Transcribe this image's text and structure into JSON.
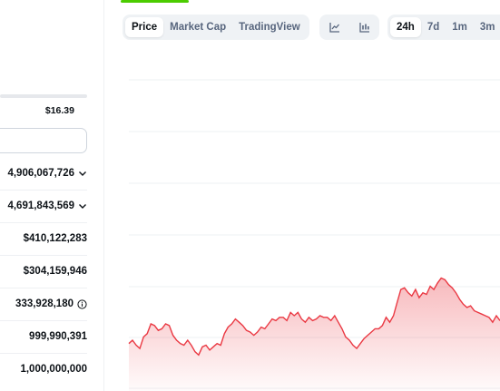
{
  "stats": {
    "range_high": "$16.39",
    "rows": [
      {
        "value": "4,906,067,726",
        "icon": "chevron-down-icon"
      },
      {
        "value": "4,691,843,569",
        "icon": "chevron-down-icon"
      },
      {
        "value": "$410,122,283",
        "icon": ""
      },
      {
        "value": "$304,159,946",
        "icon": ""
      },
      {
        "value": "333,928,180",
        "icon": "info-icon"
      },
      {
        "value": "999,990,391",
        "icon": ""
      },
      {
        "value": "1,000,000,000",
        "icon": ""
      }
    ]
  },
  "chart_tabs": [
    "Price",
    "Market Cap",
    "TradingView"
  ],
  "chart_tabs_active": "Price",
  "chart_type_icons": [
    "line-chart-icon",
    "candlestick-chart-icon"
  ],
  "time_tabs": [
    "24h",
    "7d",
    "1m",
    "3m"
  ],
  "time_tabs_active": "24h",
  "colors": {
    "line": "#ea3943",
    "fill": "#ea3943",
    "accent_green": "#4bcc00",
    "tab_bg": "#eff2f5"
  },
  "chart_data": {
    "type": "area",
    "title": "",
    "xlabel": "",
    "ylabel": "",
    "grid": true,
    "x": [
      0,
      1,
      2,
      3,
      4,
      5,
      6,
      7,
      8,
      9,
      10,
      11,
      12,
      13,
      14,
      15,
      16,
      17,
      18,
      19,
      20,
      21,
      22,
      23,
      24,
      25,
      26,
      27,
      28,
      29,
      30,
      31,
      32,
      33,
      34,
      35,
      36,
      37,
      38,
      39,
      40,
      41,
      42,
      43,
      44,
      45,
      46,
      47,
      48,
      49,
      50,
      51,
      52,
      53,
      54,
      55,
      56,
      57,
      58,
      59,
      60,
      61,
      62,
      63,
      64,
      65,
      66,
      67,
      68,
      69,
      70,
      71,
      72,
      73,
      74,
      75,
      76,
      77,
      78,
      79,
      80,
      81,
      82,
      83,
      84,
      85,
      86,
      87,
      88,
      89,
      90,
      91,
      92,
      93,
      94,
      95,
      96,
      97,
      98,
      99,
      100,
      101
    ],
    "values": [
      129,
      131,
      128,
      126,
      133,
      135,
      141,
      140,
      137,
      138,
      141,
      140,
      134,
      131,
      129,
      128,
      131,
      128,
      124,
      122,
      127,
      128,
      125,
      127,
      129,
      128,
      135,
      139,
      141,
      144,
      142,
      140,
      137,
      136,
      134,
      136,
      139,
      138,
      141,
      144,
      143,
      145,
      145,
      143,
      148,
      146,
      148,
      144,
      142,
      145,
      143,
      144,
      146,
      145,
      145,
      143,
      146,
      142,
      138,
      133,
      131,
      128,
      126,
      129,
      132,
      134,
      136,
      138,
      138,
      140,
      145,
      142,
      146,
      154,
      162,
      163,
      160,
      158,
      162,
      157,
      160,
      159,
      164,
      162,
      166,
      169,
      168,
      165,
      163,
      160,
      156,
      153,
      151,
      152,
      149,
      148,
      147,
      146,
      145,
      142,
      146,
      143
    ],
    "ylim": [
      100,
      300
    ],
    "note_axis": "y values are the vertical level of the price line as drawn; no axis ticks are visible"
  }
}
